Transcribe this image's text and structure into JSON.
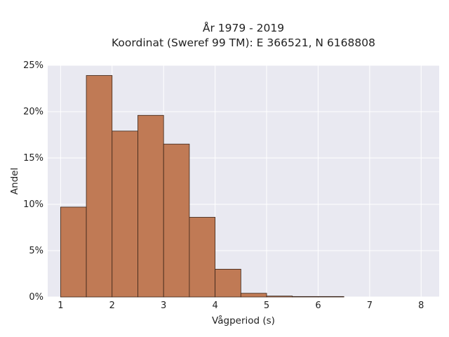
{
  "chart_data": {
    "type": "bar",
    "title_lines": [
      "År 1979 - 2019",
      "Koordinat (Sweref 99 TM): E 366521, N 6168808"
    ],
    "xlabel": "Vågperiod (s)",
    "ylabel": "Andel",
    "xlim": [
      0.75,
      8.35
    ],
    "ylim": [
      0,
      25
    ],
    "x_ticks": [
      1,
      2,
      3,
      4,
      5,
      6,
      7,
      8
    ],
    "x_tick_labels": [
      "1",
      "2",
      "3",
      "4",
      "5",
      "6",
      "7",
      "8"
    ],
    "y_ticks": [
      0,
      5,
      10,
      15,
      20,
      25
    ],
    "y_tick_labels": [
      "0%",
      "5%",
      "10%",
      "15%",
      "20%",
      "25%"
    ],
    "bin_width": 0.5,
    "bins": [
      {
        "start": 1.0,
        "value": 9.7
      },
      {
        "start": 1.5,
        "value": 23.9
      },
      {
        "start": 2.0,
        "value": 17.9
      },
      {
        "start": 2.5,
        "value": 19.6
      },
      {
        "start": 3.0,
        "value": 16.5
      },
      {
        "start": 3.5,
        "value": 8.6
      },
      {
        "start": 4.0,
        "value": 3.0
      },
      {
        "start": 4.5,
        "value": 0.4
      },
      {
        "start": 5.0,
        "value": 0.1
      },
      {
        "start": 5.5,
        "value": 0.05
      },
      {
        "start": 6.0,
        "value": 0.05
      }
    ],
    "grid": true,
    "colors": {
      "bar_fill": "#c07a55",
      "bar_edge": "#3a2418",
      "plot_background": "#e9e9f1",
      "grid": "#ffffff"
    }
  }
}
